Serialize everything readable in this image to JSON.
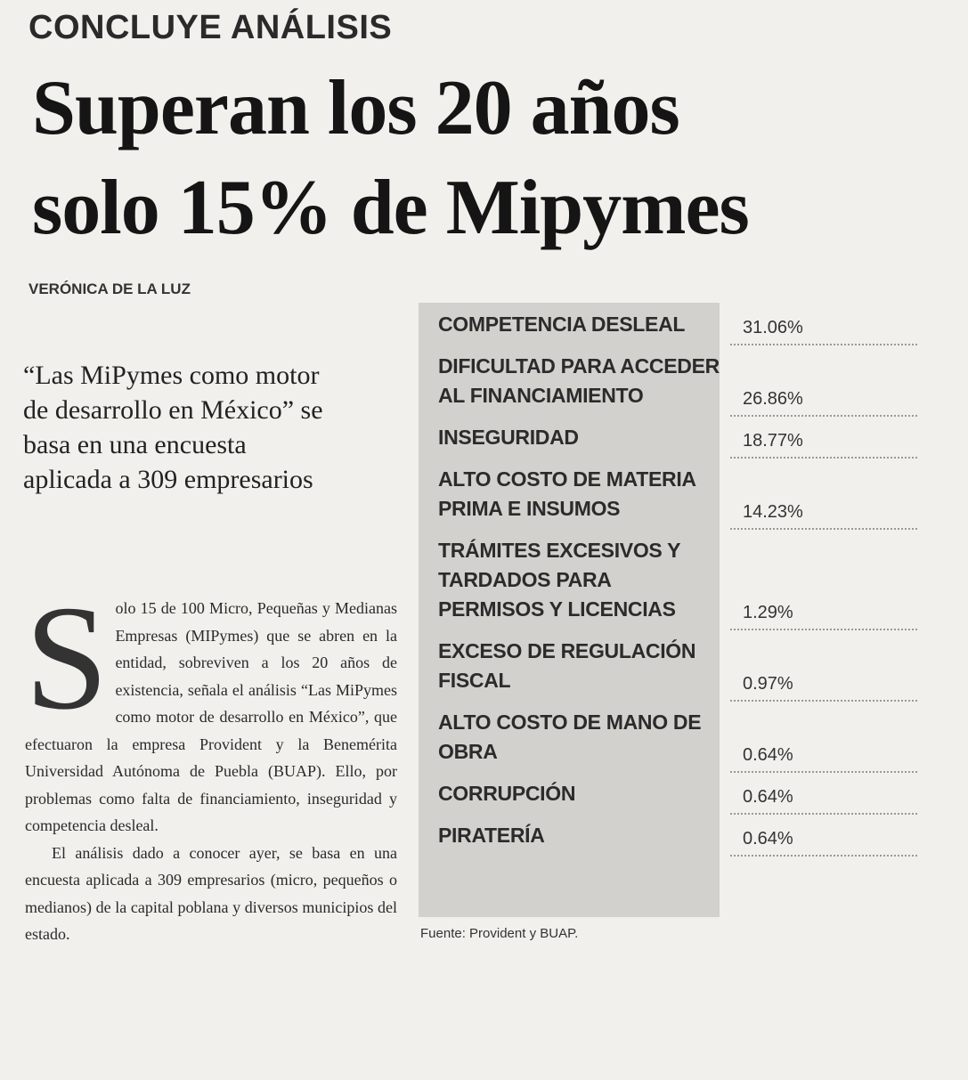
{
  "header": {
    "kicker": "CONCLUYE ANÁLISIS",
    "title_lines": [
      "Superan los 20 años",
      "solo 15% de Mipymes"
    ],
    "byline": "VERÓNICA DE LA LUZ"
  },
  "pull_quote": "“Las MiPymes como motor de desarrollo en México” se basa en una encuesta aplicada a 309 empresarios",
  "body": {
    "drop_cap": "S",
    "paragraphs": [
      "olo 15 de 100 Micro, Pequeñas y Medianas Empresas (MIPymes) que se abren en la entidad, sobreviven a los 20 años de existencia, señala el análisis “Las MiPymes como motor de desarrollo en México”, que efectuaron la empresa Provident y la Benemérita Universidad Autónoma de Puebla (BUAP). Ello, por problemas como falta de financiamiento, inseguridad y competencia desleal.",
      "El análisis dado a conocer ayer, se basa en una encuesta aplicada a 309 empresarios (micro, pequeños o medianos) de la capital poblana y diversos municipios del estado."
    ]
  },
  "table": {
    "rows": [
      [
        "COMPETENCIA DESLEAL",
        "31.06%"
      ],
      [
        "DIFICULTAD PARA ACCEDER AL FINANCIAMIENTO",
        "26.86%"
      ],
      [
        "INSEGURIDAD",
        "18.77%"
      ],
      [
        "ALTO COSTO DE MATERIA PRIMA E INSUMOS",
        "14.23%"
      ],
      [
        "TRÁMITES EXCESIVOS Y TARDADOS PARA PERMISOS Y LICENCIAS",
        "1.29%"
      ],
      [
        "EXCESO DE REGULACIÓN FISCAL",
        "0.97%"
      ],
      [
        "ALTO COSTO DE MANO DE OBRA",
        "0.64%"
      ],
      [
        "CORRUPCIÓN",
        "0.64%"
      ],
      [
        "PIRATERÍA",
        "0.64%"
      ]
    ],
    "source": "Fuente: Provident y BUAP."
  }
}
